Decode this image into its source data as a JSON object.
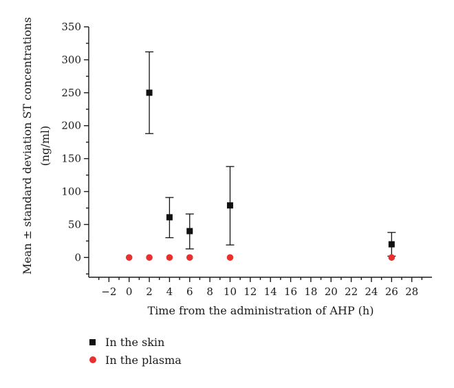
{
  "chart_data": {
    "type": "scatter",
    "xlabel": "Time from the administration of AHP (h)",
    "ylabel": [
      "Mean ± standard deviation ST concentrations",
      "(ng/ml)"
    ],
    "xlim": [
      -4,
      30
    ],
    "ylim": [
      -30,
      350
    ],
    "x_ticks": [
      -2,
      0,
      2,
      4,
      6,
      8,
      10,
      12,
      14,
      16,
      18,
      20,
      22,
      24,
      26,
      28
    ],
    "x_tick_labels": [
      "−2",
      "0",
      "2",
      "4",
      "6",
      "8",
      "10",
      "12",
      "14",
      "16",
      "18",
      "20",
      "22",
      "24",
      "26",
      "28"
    ],
    "y_ticks": [
      0,
      50,
      100,
      150,
      200,
      250,
      300,
      350
    ],
    "y_tick_labels": [
      "0",
      "50",
      "100",
      "150",
      "200",
      "250",
      "300",
      "350"
    ],
    "legend_position": "bottom-left, below plot",
    "series": [
      {
        "name": "In the skin",
        "marker": "square",
        "color": "#111111",
        "points": [
          {
            "x": 2,
            "y": 250,
            "yerr_low": 188,
            "yerr_high": 312
          },
          {
            "x": 4,
            "y": 61,
            "yerr_low": 30,
            "yerr_high": 91
          },
          {
            "x": 6,
            "y": 40,
            "yerr_low": 13,
            "yerr_high": 66
          },
          {
            "x": 10,
            "y": 79,
            "yerr_low": 19,
            "yerr_high": 138
          },
          {
            "x": 26,
            "y": 20,
            "yerr_low": 2,
            "yerr_high": 38
          }
        ]
      },
      {
        "name": "In the plasma",
        "marker": "circle",
        "color": "#e8312f",
        "points": [
          {
            "x": 0,
            "y": 0
          },
          {
            "x": 2,
            "y": 0
          },
          {
            "x": 4,
            "y": 0
          },
          {
            "x": 6,
            "y": 0
          },
          {
            "x": 10,
            "y": 0
          },
          {
            "x": 26,
            "y": 0
          }
        ]
      }
    ]
  }
}
